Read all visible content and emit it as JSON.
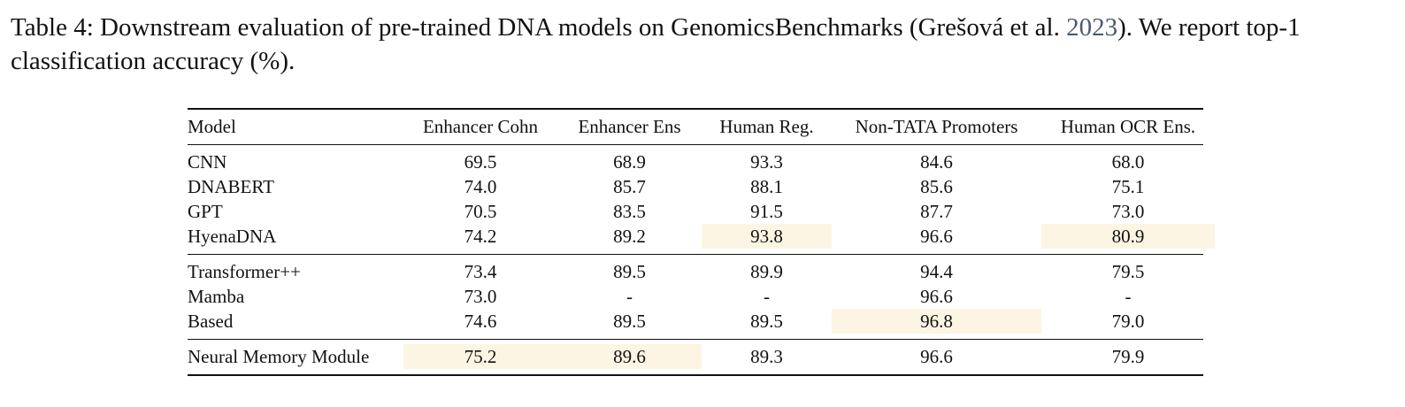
{
  "caption": {
    "before": "Table 4: Downstream evaluation of pre-trained DNA models on GenomicsBenchmarks (Grešová et al. ",
    "cite": "2023",
    "after": "). We report top-1 classification accuracy (%)."
  },
  "table": {
    "header": [
      "Model",
      "Enhancer Cohn",
      "Enhancer Ens",
      "Human Reg.",
      "Non-TATA Promoters",
      "Human OCR Ens."
    ],
    "groups": [
      [
        [
          "CNN",
          "69.5",
          "68.9",
          "93.3",
          "84.6",
          "68.0"
        ],
        [
          "DNABERT",
          "74.0",
          "85.7",
          "88.1",
          "85.6",
          "75.1"
        ],
        [
          "GPT",
          "70.5",
          "83.5",
          "91.5",
          "87.7",
          "73.0"
        ],
        [
          "HyenaDNA",
          "74.2",
          "89.2",
          "93.8",
          "96.6",
          "80.9"
        ]
      ],
      [
        [
          "Transformer++",
          "73.4",
          "89.5",
          "89.9",
          "94.4",
          "79.5"
        ],
        [
          "Mamba",
          "73.0",
          "-",
          "-",
          "96.6",
          "-"
        ],
        [
          "Based",
          "74.6",
          "89.5",
          "89.5",
          "96.8",
          "79.0"
        ]
      ],
      [
        [
          "Neural Memory Module",
          "75.2",
          "89.6",
          "89.3",
          "96.6",
          "79.9"
        ]
      ]
    ],
    "highlight_color": "#fdf5e3",
    "highlighted": [
      [
        0,
        3,
        3
      ],
      [
        0,
        3,
        5
      ],
      [
        1,
        2,
        4
      ],
      [
        2,
        0,
        1
      ],
      [
        2,
        0,
        2
      ]
    ]
  }
}
